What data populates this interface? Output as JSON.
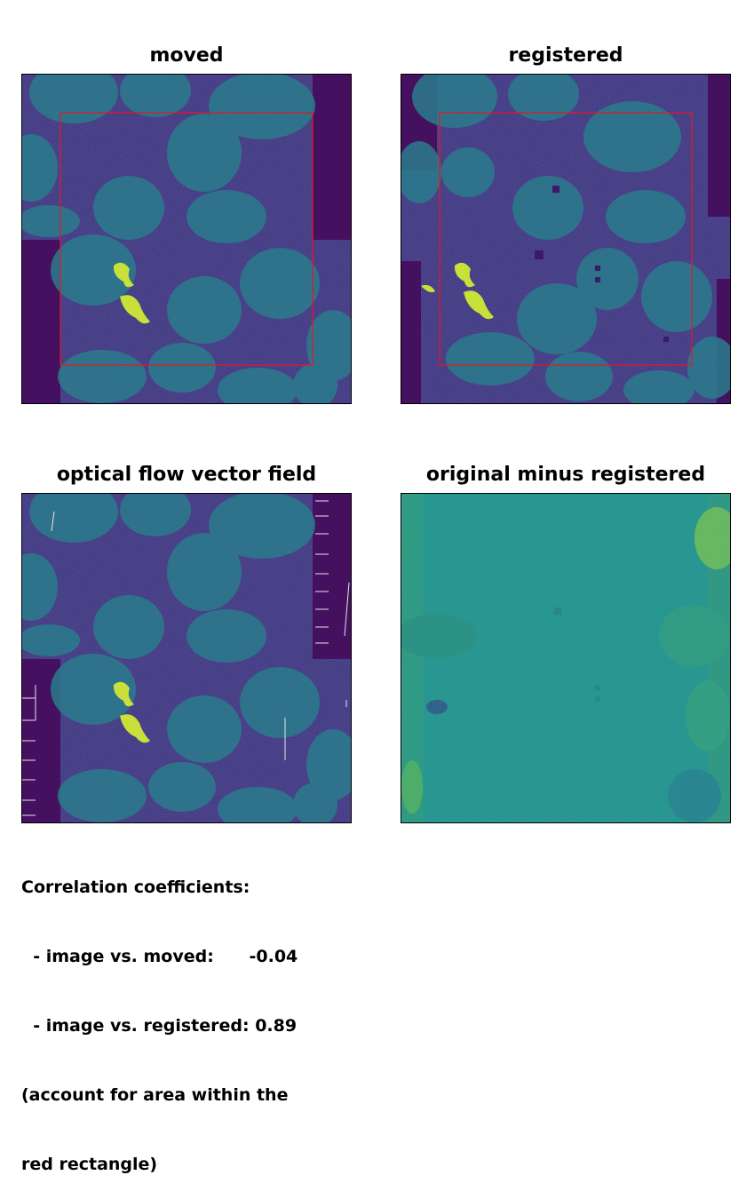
{
  "panels": [
    {
      "id": "moved",
      "title": "moved"
    },
    {
      "id": "registered",
      "title": "registered"
    },
    {
      "id": "flow",
      "title": "optical flow vector field"
    },
    {
      "id": "diff",
      "title": "original minus registered"
    }
  ],
  "caption": {
    "line1": "Correlation coefficients:",
    "line2": "  - image vs. moved:      -0.04",
    "line3": "  - image vs. registered: 0.89",
    "line4": "(account for area within the",
    "line5": "red rectangle)"
  },
  "colors": {
    "background_dark": "#44105f",
    "cell_base": "#3a3d8a",
    "nucleus": "#2a7f8e",
    "bright_spot": "#cfe23a",
    "red_rectangle": "#e31a1c",
    "diff_base": "#21918c"
  }
}
